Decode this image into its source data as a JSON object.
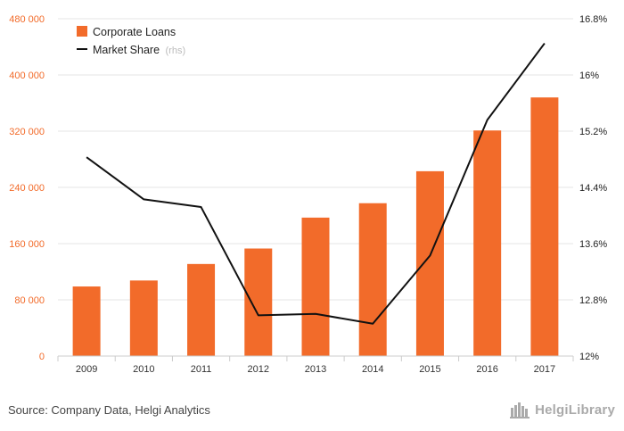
{
  "chart_data": {
    "type": "bar+line",
    "categories": [
      "2009",
      "2010",
      "2011",
      "2012",
      "2013",
      "2014",
      "2015",
      "2016",
      "2017"
    ],
    "series": [
      {
        "name": "Corporate Loans",
        "type": "bar",
        "axis": "left",
        "color": "#f26b2a",
        "values": [
          99000,
          107500,
          131000,
          153000,
          197000,
          217500,
          263000,
          321000,
          368000
        ]
      },
      {
        "name": "Market Share",
        "type": "line",
        "axis": "right",
        "color": "#111111",
        "values": [
          14.83,
          14.23,
          14.12,
          12.58,
          12.6,
          12.46,
          13.43,
          15.36,
          16.45
        ]
      }
    ],
    "y_left": {
      "ylim": [
        0,
        480000
      ],
      "ticks": [
        0,
        80000,
        160000,
        240000,
        320000,
        400000,
        480000
      ],
      "tick_labels": [
        "0",
        "80 000",
        "160 000",
        "240 000",
        "320 000",
        "400 000",
        "480 000"
      ],
      "color": "#f26b2a"
    },
    "y_right": {
      "ylim": [
        12,
        16.8
      ],
      "ticks": [
        12,
        12.8,
        13.6,
        14.4,
        15.2,
        16,
        16.8
      ],
      "tick_labels": [
        "12%",
        "12.8%",
        "13.6%",
        "14.4%",
        "15.2%",
        "16%",
        "16.8%"
      ],
      "color": "#222222"
    },
    "legend": {
      "position": "top-left",
      "items": [
        {
          "label": "Corporate Loans",
          "suffix": ""
        },
        {
          "label": "Market Share",
          "suffix": "(rhs)"
        }
      ]
    },
    "grid": "horizontal"
  },
  "footer": {
    "source": "Source: Company Data, Helgi Analytics",
    "logo_text": "HelgiLibrary",
    "logo_icon": "helgi-library-icon"
  }
}
